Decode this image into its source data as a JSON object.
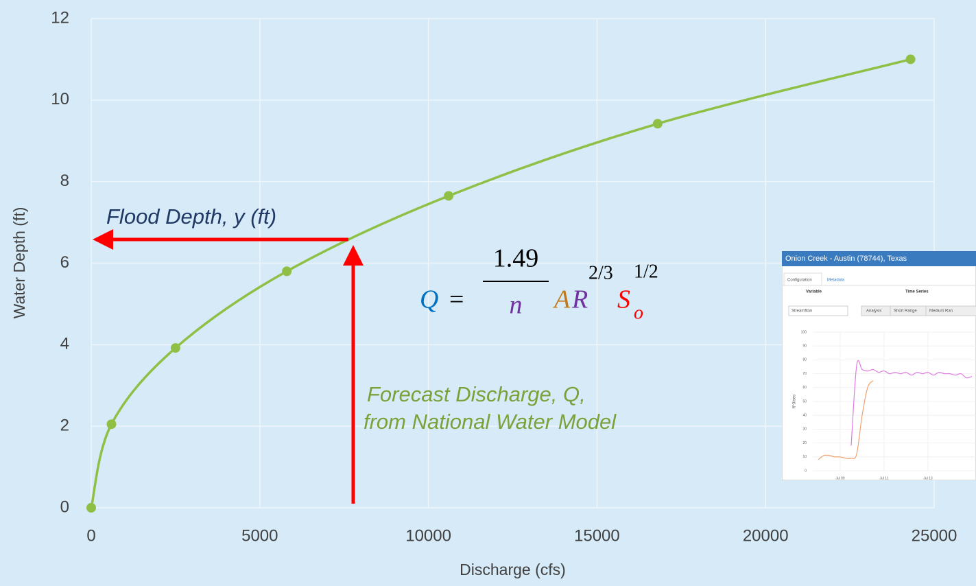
{
  "chart_data": [
    {
      "type": "line",
      "x_label": "Discharge (cfs)",
      "y_label": "Water Depth (ft)",
      "x": [
        0,
        600,
        2500,
        5800,
        10600,
        16800,
        24300
      ],
      "values": [
        0,
        2.05,
        3.92,
        5.8,
        7.65,
        9.42,
        11
      ],
      "color": "#8fc045",
      "xlim": [
        0,
        25000
      ],
      "xticks": [
        0,
        5000,
        10000,
        15000,
        20000,
        25000
      ],
      "ylim": [
        0,
        12
      ],
      "yticks": [
        0,
        2,
        4,
        6,
        8,
        10,
        12
      ],
      "grid": true,
      "annotations": [
        "Flood Depth, y (ft)",
        "Forecast Discharge, Q,",
        "from National Water Model"
      ],
      "equation": {
        "lhs": "Q",
        "eq": "=",
        "numerator": "1.49",
        "denominator": "n",
        "a": "A",
        "r": "R",
        "r_exp": "2/3",
        "s": "S",
        "s_sub": "o",
        "s_exp": "1/2"
      }
    },
    {
      "type": "line",
      "title": "Onion Creek - Austin (78744), Texas",
      "y_label": "ft^3/sec",
      "categories": [
        null,
        null,
        null,
        null,
        "Jul 09",
        null,
        null,
        null,
        null,
        null,
        null,
        null,
        "Jul 11",
        null,
        null,
        null,
        null,
        null,
        null,
        null,
        "Jul 13",
        null,
        null,
        null,
        null,
        null,
        null,
        null,
        null
      ],
      "series": [
        {
          "color": "#f0a070",
          "values": [
            8,
            11,
            11,
            10,
            10,
            9,
            9,
            12,
            40,
            60,
            65,
            null,
            null,
            null,
            null,
            null,
            null,
            null,
            null,
            null,
            null,
            null,
            null,
            null,
            null,
            null,
            null,
            null,
            null
          ]
        },
        {
          "color": "#e07be0",
          "values": [
            null,
            null,
            null,
            null,
            null,
            null,
            18,
            76,
            73,
            72,
            73,
            71,
            72,
            70,
            71,
            70,
            71,
            69,
            71,
            70,
            71,
            69,
            71,
            70,
            70,
            69,
            70,
            67,
            68
          ]
        }
      ],
      "ylim": [
        0,
        100
      ],
      "yticks": [
        0,
        10,
        20,
        30,
        40,
        50,
        60,
        70,
        80,
        90,
        100
      ],
      "grid": true
    }
  ],
  "inset_ui": {
    "tabs": [
      "Configuration",
      "Metadata"
    ],
    "variable_label": "Variable",
    "variable_value": "Streamflow",
    "time_series_label": "Time Series",
    "buttons": [
      "Analysis",
      "Short Range",
      "Medium Ran"
    ]
  }
}
